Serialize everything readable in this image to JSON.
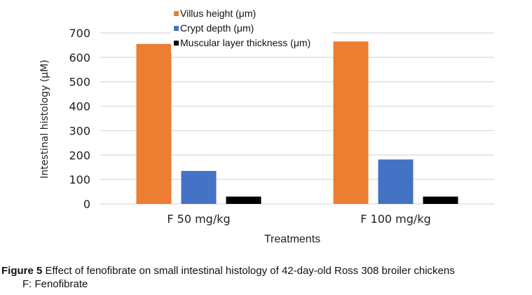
{
  "chart_data": {
    "type": "bar",
    "title": "",
    "xlabel": "Treatments",
    "ylabel": "Intestinal histology (μM)",
    "ylim": [
      0,
      700
    ],
    "yticks": [
      0,
      100,
      200,
      300,
      400,
      500,
      600,
      700
    ],
    "grid": true,
    "legend_position": "top-center",
    "categories": [
      "F 50 mg/kg",
      "F 100 mg/kg"
    ],
    "series": [
      {
        "name": "Villus height (μm)",
        "color": "#ED7D31",
        "values": [
          655,
          665
        ]
      },
      {
        "name": "Crypt depth (μm)",
        "color": "#4472C4",
        "values": [
          135,
          182
        ]
      },
      {
        "name": "Muscular layer thickness (μm)",
        "color": "#000000",
        "values": [
          30,
          30
        ]
      }
    ]
  },
  "caption": {
    "label": "Figure 5",
    "text": " Effect of fenofibrate on small intestinal histology of 42-day-old Ross 308 broiler chickens",
    "note": "F: Fenofibrate"
  }
}
